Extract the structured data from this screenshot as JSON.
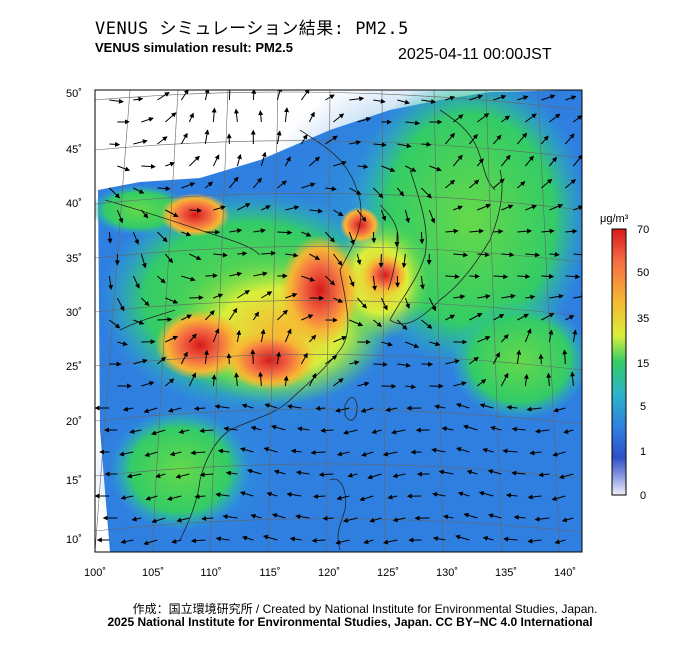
{
  "title_jp": "VENUS シミュレーション結果: PM2.5",
  "title_en": "VENUS simulation result: PM2.5",
  "timestamp": "2025-04-11 00:00JST",
  "axes": {
    "lat_labels": [
      "50˚",
      "45˚",
      "40˚",
      "35˚",
      "30˚",
      "25˚",
      "20˚",
      "15˚",
      "10˚"
    ],
    "lon_labels": [
      "100˚",
      "105˚",
      "110˚",
      "115˚",
      "120˚",
      "125˚",
      "130˚",
      "135˚",
      "140˚"
    ]
  },
  "colorbar": {
    "unit": "μg/m³",
    "ticks": [
      "70",
      "50",
      "35",
      "15",
      "5",
      "1",
      "0"
    ],
    "colors": [
      "#d7191c",
      "#f46d43",
      "#f7b733",
      "#d9ef3b",
      "#66d94a",
      "#33cc66",
      "#2ab5c9",
      "#2f7fe0",
      "#3050c8",
      "#8a9adf",
      "#e8e8f8"
    ]
  },
  "layers": {
    "ocean": "#ffffff",
    "land_outline": "#333333",
    "plume_high": "#d7191c",
    "plume_mid": "#f7a41d",
    "plume_low": "#66d94a",
    "background": "#2f7fe0"
  },
  "credits": {
    "line1": "作成：国立環境研究所 / Created by National Institute for Environmental Studies, Japan.",
    "line2": "2025 National Institute for Environmental Studies, Japan. CC BY−NC 4.0 International"
  }
}
